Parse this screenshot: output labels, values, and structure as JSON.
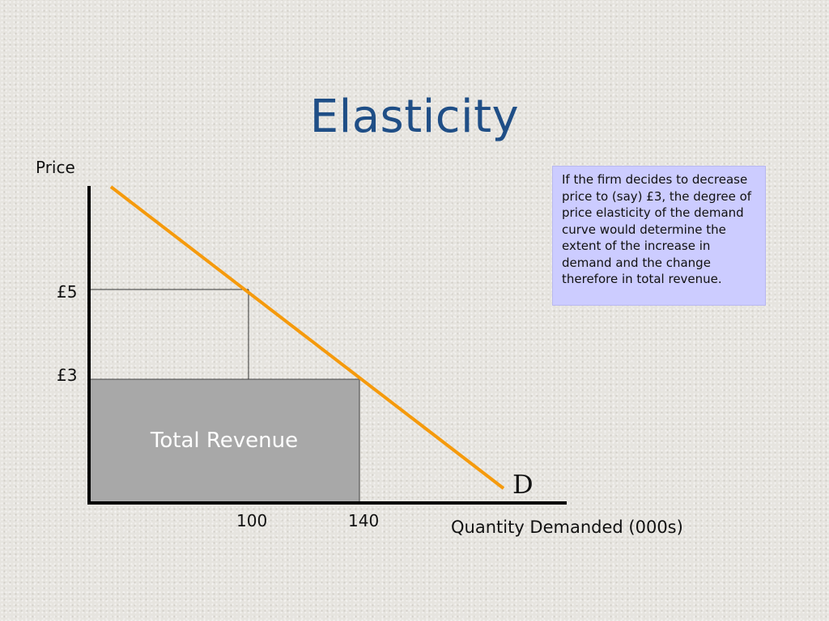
{
  "slide": {
    "title": "Elasticity",
    "note": "If the firm decides to decrease price to (say) £3, the degree of price elasticity of the demand curve would determine the extent of the increase in demand and the change therefore in total revenue."
  },
  "chart_data": {
    "type": "line",
    "ylabel": "Price",
    "xlabel": "Quantity Demanded (000s)",
    "y_ticks": [
      "£5",
      "£3"
    ],
    "x_ticks": [
      "100",
      "140"
    ],
    "curve_label": "D",
    "shaded_area_label": "Total Revenue",
    "points": [
      {
        "quantity": 100,
        "price": 5
      },
      {
        "quantity": 140,
        "price": 3
      }
    ],
    "colors": {
      "demand_curve": "#f59a0c",
      "total_revenue_fill": "#a8a8a8",
      "axes": "#000000"
    }
  }
}
